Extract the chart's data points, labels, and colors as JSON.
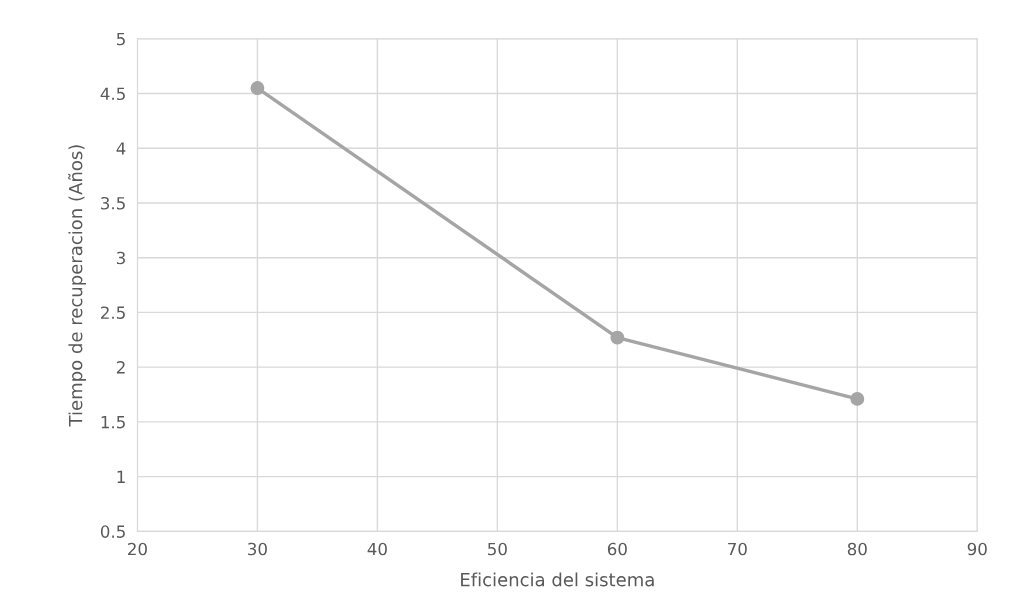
{
  "chart_data": {
    "type": "line",
    "xlabel": "Eficiencia del sistema",
    "ylabel": "Tiempo de recuperacion (Años)",
    "series": [
      {
        "color": "#a5a5a5",
        "x": [
          30,
          60,
          80
        ],
        "values": [
          4.55,
          2.27,
          1.71
        ]
      }
    ],
    "xlim": [
      20,
      90
    ],
    "xticks": [
      20,
      30,
      40,
      50,
      60,
      70,
      80,
      90
    ],
    "ylim": [
      0.5,
      5
    ],
    "yticks": [
      0.5,
      1,
      1.5,
      2,
      2.5,
      3,
      3.5,
      4,
      4.5,
      5
    ],
    "grid": true,
    "marker": "circle",
    "line_style": "solid",
    "legend": false
  }
}
